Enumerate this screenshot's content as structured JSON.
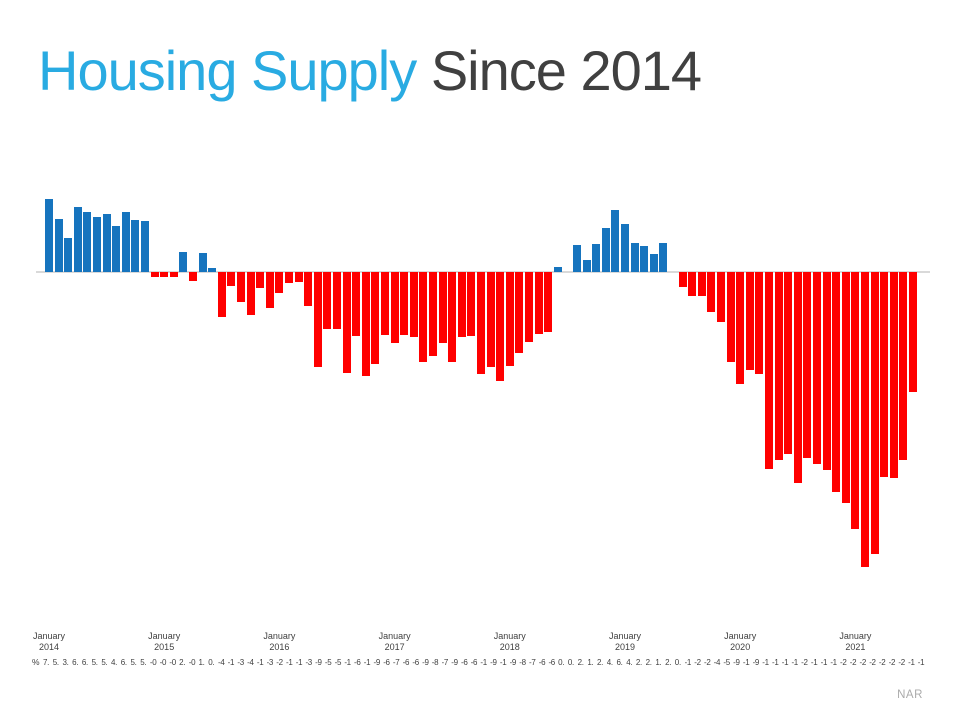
{
  "title": {
    "highlight": "Housing Supply ",
    "rest": "Since 2014"
  },
  "attribution": "NAR",
  "colors": {
    "title_blue": "#29abe2",
    "title_gray": "#404040",
    "bar_positive": "#1674be",
    "bar_negative": "#ff0000",
    "axis_line": "#d9d9d9",
    "tick_text": "#404040",
    "attribution_text": "#ababab"
  },
  "chart_data": {
    "type": "bar",
    "title": "Housing Supply Since 2014",
    "ylabel": "%",
    "data_label_prefix": "%",
    "legend": "none",
    "grid": "off",
    "ylim": [
      -30,
      8
    ],
    "x_range": "January 2014 to July 2021, monthly year-over-year % change",
    "x_tick_labels": [
      {
        "month": "January",
        "year": "2014"
      },
      {
        "month": "January",
        "year": "2015"
      },
      {
        "month": "January",
        "year": "2016"
      },
      {
        "month": "January",
        "year": "2017"
      },
      {
        "month": "January",
        "year": "2018"
      },
      {
        "month": "January",
        "year": "2019"
      },
      {
        "month": "January",
        "year": "2020"
      },
      {
        "month": "January",
        "year": "2021"
      }
    ],
    "values": [
      7.3,
      5.3,
      3.4,
      6.5,
      6.0,
      5.5,
      5.8,
      4.6,
      6.0,
      5.2,
      5.1,
      -0.5,
      -0.5,
      -0.5,
      2.0,
      -0.9,
      1.9,
      0.4,
      -4.5,
      -1.4,
      -3.0,
      -4.3,
      -1.6,
      -3.6,
      -2.1,
      -1.1,
      -1.0,
      -3.4,
      -9.5,
      -5.7,
      -5.7,
      -10.1,
      -6.4,
      -10.4,
      -9.2,
      -6.3,
      -7.1,
      -6.3,
      -6.5,
      -9.0,
      -8.4,
      -7.1,
      -9.0,
      -6.5,
      -6.4,
      -10.2,
      -9.5,
      -10.9,
      -9.4,
      -8.1,
      -7.0,
      -6.2,
      -6.0,
      0.5,
      0.0,
      2.7,
      1.2,
      2.8,
      4.4,
      6.2,
      4.8,
      2.9,
      2.6,
      1.8,
      2.9,
      0.0,
      -1.5,
      -2.4,
      -2.4,
      -4.0,
      -5.0,
      -9.0,
      -11.2,
      -9.8,
      -10.2,
      -19.7,
      -18.8,
      -18.2,
      -21.1,
      -18.6,
      -19.2,
      -19.8,
      -22.0,
      -23.1,
      -25.7,
      -29.5,
      -28.2,
      -20.5,
      -20.6,
      -18.8,
      -12.0
    ]
  }
}
